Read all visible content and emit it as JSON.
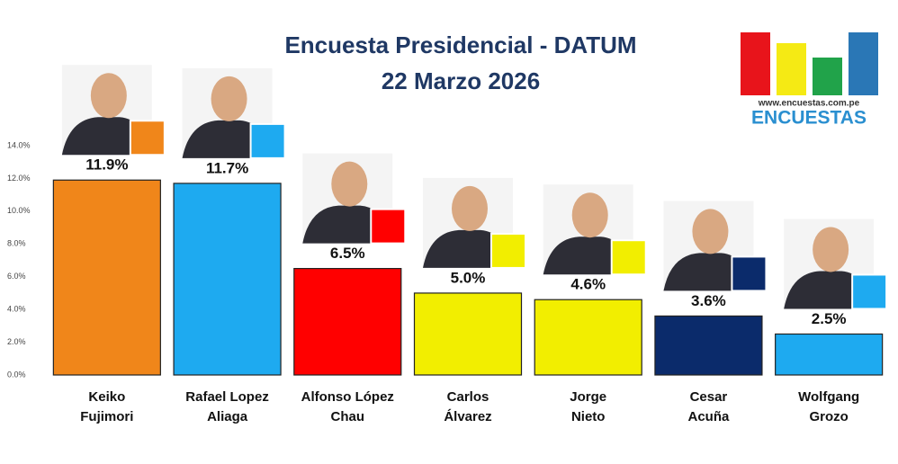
{
  "chart_data": {
    "type": "bar",
    "title": "Encuesta Presidencial - DATUM",
    "subtitle": "22 Marzo 2026",
    "categories": [
      [
        "Keiko",
        "Fujimori"
      ],
      [
        "Rafael Lopez",
        "Aliaga"
      ],
      [
        "Alfonso López",
        "Chau"
      ],
      [
        "Carlos",
        "Álvarez"
      ],
      [
        "Jorge",
        "Nieto"
      ],
      [
        "Cesar",
        "Acuña"
      ],
      [
        "Wolfgang",
        "Grozo"
      ]
    ],
    "values": [
      11.9,
      11.7,
      6.5,
      5.0,
      4.6,
      3.6,
      2.5
    ],
    "value_labels": [
      "11.9%",
      "11.7%",
      "6.5%",
      "5.0%",
      "4.6%",
      "3.6%",
      "2.5%"
    ],
    "colors": [
      "#f0861a",
      "#1eaaf0",
      "#ff0000",
      "#f2ee00",
      "#f2ee00",
      "#0b2b6b",
      "#1eaaf0"
    ],
    "ylim": [
      0,
      14
    ],
    "yticks": [
      {
        "value": 0,
        "label": "0.0%"
      },
      {
        "value": 2,
        "label": "2.0%"
      },
      {
        "value": 4,
        "label": "4.0%"
      },
      {
        "value": 6,
        "label": "6.0%"
      },
      {
        "value": 8,
        "label": "8.0%"
      },
      {
        "value": 10,
        "label": "10.0%"
      },
      {
        "value": 12,
        "label": "12.0%"
      },
      {
        "value": 14,
        "label": "14.0%"
      }
    ],
    "grid": false,
    "logo": {
      "url": "www.encuestas.com.pe",
      "name": "ENCUESTAS"
    }
  }
}
